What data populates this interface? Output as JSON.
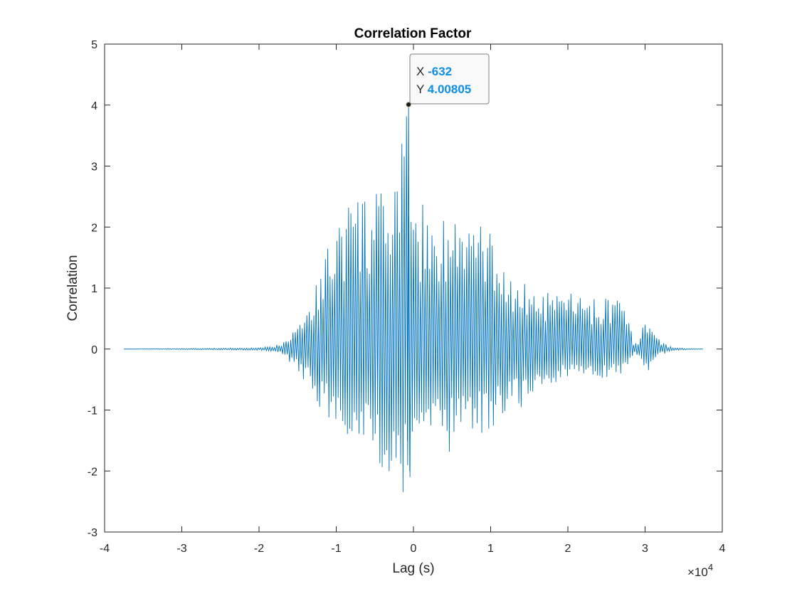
{
  "chart_data": {
    "type": "line",
    "title": "Correlation Factor",
    "xlabel": "Lag (s)",
    "ylabel": "Correlation",
    "x_exponent_label": "×10",
    "x_exponent_power": "4",
    "xlim": [
      -4,
      4
    ],
    "ylim": [
      -3,
      5
    ],
    "x_scale": 10000,
    "xticks": [
      -4,
      -3,
      -2,
      -1,
      0,
      1,
      2,
      3,
      4
    ],
    "xtick_labels": [
      "-4",
      "-3",
      "-2",
      "-1",
      "0",
      "1",
      "2",
      "3",
      "4"
    ],
    "yticks": [
      -3,
      -2,
      -1,
      0,
      1,
      2,
      3,
      4,
      5
    ],
    "ytick_labels": [
      "-3",
      "-2",
      "-1",
      "0",
      "1",
      "2",
      "3",
      "4",
      "5"
    ],
    "grid": false,
    "line_color": "#0072BD",
    "series": [
      {
        "data_range_x": [
          -37500,
          37500
        ],
        "envelope_max": [
          [
            -37500,
            0
          ],
          [
            -20000,
            0.02
          ],
          [
            -18000,
            0.05
          ],
          [
            -17000,
            0.12
          ],
          [
            -16000,
            0.28
          ],
          [
            -15000,
            0.5
          ],
          [
            -14000,
            0.7
          ],
          [
            -13000,
            0.95
          ],
          [
            -12000,
            1.35
          ],
          [
            -11000,
            1.85
          ],
          [
            -10000,
            2.15
          ],
          [
            -9000,
            2.4
          ],
          [
            -8000,
            2.65
          ],
          [
            -7000,
            2.5
          ],
          [
            -6000,
            2.55
          ],
          [
            -5000,
            2.65
          ],
          [
            -4000,
            2.55
          ],
          [
            -3000,
            2.7
          ],
          [
            -2000,
            3.0
          ],
          [
            -1200,
            3.7
          ],
          [
            -632,
            4.00805
          ],
          [
            0,
            3.3
          ],
          [
            500,
            2.5
          ],
          [
            1500,
            2.35
          ],
          [
            2000,
            2.5
          ],
          [
            3000,
            2.2
          ],
          [
            4000,
            2.4
          ],
          [
            5000,
            2.1
          ],
          [
            6000,
            2.25
          ],
          [
            7000,
            2.25
          ],
          [
            8000,
            2.2
          ],
          [
            9000,
            2.0
          ],
          [
            10000,
            1.95
          ],
          [
            11000,
            1.75
          ],
          [
            12000,
            1.3
          ],
          [
            13000,
            1.2
          ],
          [
            14000,
            1.1
          ],
          [
            15000,
            1.05
          ],
          [
            16000,
            0.95
          ],
          [
            17000,
            0.98
          ],
          [
            18000,
            0.85
          ],
          [
            19000,
            0.9
          ],
          [
            20000,
            1.0
          ],
          [
            21000,
            1.0
          ],
          [
            22000,
            0.75
          ],
          [
            23000,
            0.85
          ],
          [
            24000,
            0.8
          ],
          [
            25000,
            0.85
          ],
          [
            26000,
            0.9
          ],
          [
            27000,
            0.8
          ],
          [
            28000,
            0.5
          ],
          [
            28500,
            0.1
          ],
          [
            29000,
            0.1
          ],
          [
            29500,
            0.3
          ],
          [
            30000,
            0.5
          ],
          [
            30500,
            0.5
          ],
          [
            31000,
            0.4
          ],
          [
            32000,
            0.15
          ],
          [
            33000,
            0.05
          ],
          [
            34000,
            0.02
          ],
          [
            37500,
            0
          ]
        ],
        "envelope_min": [
          [
            -37500,
            0
          ],
          [
            -20000,
            -0.02
          ],
          [
            -18000,
            -0.05
          ],
          [
            -17000,
            -0.1
          ],
          [
            -16000,
            -0.22
          ],
          [
            -15000,
            -0.35
          ],
          [
            -14000,
            -0.55
          ],
          [
            -13000,
            -0.75
          ],
          [
            -12000,
            -1.0
          ],
          [
            -11000,
            -1.15
          ],
          [
            -10000,
            -1.35
          ],
          [
            -9000,
            -1.4
          ],
          [
            -8000,
            -1.5
          ],
          [
            -7000,
            -1.65
          ],
          [
            -6000,
            -1.85
          ],
          [
            -5000,
            -2.05
          ],
          [
            -4000,
            -2.2
          ],
          [
            -3000,
            -2.35
          ],
          [
            -2000,
            -2.4
          ],
          [
            -1000,
            -2.5
          ],
          [
            0,
            -2.45
          ],
          [
            500,
            -2.0
          ],
          [
            1000,
            -1.6
          ],
          [
            2000,
            -1.45
          ],
          [
            3000,
            -1.5
          ],
          [
            4000,
            -1.85
          ],
          [
            5000,
            -1.6
          ],
          [
            6000,
            -1.25
          ],
          [
            7000,
            -1.45
          ],
          [
            8000,
            -1.3
          ],
          [
            9000,
            -1.45
          ],
          [
            10000,
            -1.35
          ],
          [
            11000,
            -1.2
          ],
          [
            12000,
            -1.0
          ],
          [
            13000,
            -0.95
          ],
          [
            14000,
            -1.0
          ],
          [
            15000,
            -0.85
          ],
          [
            16000,
            -0.75
          ],
          [
            17000,
            -0.65
          ],
          [
            18000,
            -0.6
          ],
          [
            19000,
            -0.55
          ],
          [
            20000,
            -0.5
          ],
          [
            21000,
            -0.48
          ],
          [
            22000,
            -0.5
          ],
          [
            23000,
            -0.45
          ],
          [
            24000,
            -0.5
          ],
          [
            25000,
            -0.5
          ],
          [
            26000,
            -0.45
          ],
          [
            27000,
            -0.4
          ],
          [
            28000,
            -0.2
          ],
          [
            28500,
            -0.1
          ],
          [
            29000,
            -0.1
          ],
          [
            29500,
            -0.2
          ],
          [
            30000,
            -0.4
          ],
          [
            30500,
            -0.45
          ],
          [
            31000,
            -0.3
          ],
          [
            32000,
            -0.1
          ],
          [
            33000,
            -0.05
          ],
          [
            34000,
            -0.02
          ],
          [
            37500,
            0
          ]
        ]
      }
    ],
    "datatip": {
      "x_label": "X",
      "x_value": "-632",
      "y_label": "Y",
      "y_value": "4.00805",
      "x": -632,
      "y": 4.00805,
      "value_color": "#0d8fe6"
    }
  }
}
